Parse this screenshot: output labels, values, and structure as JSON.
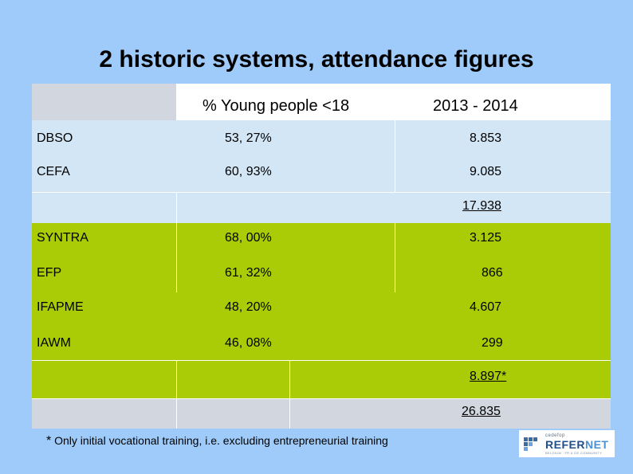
{
  "title": "2 historic systems, attendance figures",
  "table": {
    "headers": [
      "",
      "% Young people <18",
      "2013 - 2014"
    ],
    "group1": [
      {
        "name": "DBSO",
        "pct": "53, 27%",
        "count": "8.853"
      },
      {
        "name": "CEFA",
        "pct": "60, 93%",
        "count": "9.085"
      }
    ],
    "group1_total": "17.938",
    "group2": [
      {
        "name": "SYNTRA",
        "pct": "68, 00%",
        "count": "3.125"
      },
      {
        "name": "EFP",
        "pct": "61, 32%",
        "count": "866"
      },
      {
        "name": "IFAPME",
        "pct": "48, 20%",
        "count": "4.607"
      },
      {
        "name": "IAWM",
        "pct": "46, 08%",
        "count": "299"
      }
    ],
    "group2_total": "8.897*",
    "grand_total": "26.835"
  },
  "footnote": {
    "star": "*",
    "text": "Only initial vocational training, i.e. excluding entrepreneurial training"
  },
  "logo": {
    "top": "cedefop",
    "name_a": "REFER",
    "name_b": "NET",
    "sub": "BELGIUM · FR & DE COMMUNITY"
  }
}
